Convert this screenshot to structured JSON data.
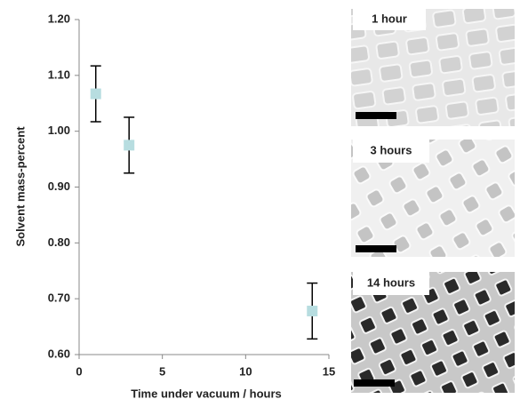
{
  "chart_data": {
    "type": "scatter",
    "x_label": "Time under vacuum / hours",
    "y_label": "Solvent mass-percent",
    "x": [
      1,
      3,
      14
    ],
    "values": [
      1.067,
      0.975,
      0.678
    ],
    "errors": [
      0.05,
      0.05,
      0.05
    ],
    "color": "#b7dde0",
    "xlim": [
      0,
      15
    ],
    "xticks": [
      0,
      5,
      10,
      15
    ],
    "ylim": [
      0.6,
      1.2
    ],
    "yticks": [
      {
        "value": 0.6,
        "label": "0.60"
      },
      {
        "value": 0.7,
        "label": "0.70"
      },
      {
        "value": 0.8,
        "label": "0.80"
      },
      {
        "value": 0.9,
        "label": "0.90"
      },
      {
        "value": 1.0,
        "label": "1.00"
      },
      {
        "value": 1.1,
        "label": "1.10"
      },
      {
        "value": 1.2,
        "label": "1.20"
      }
    ]
  },
  "panels": [
    {
      "label": "1 hour"
    },
    {
      "label": "3 hours"
    },
    {
      "label": "14 hours"
    }
  ]
}
